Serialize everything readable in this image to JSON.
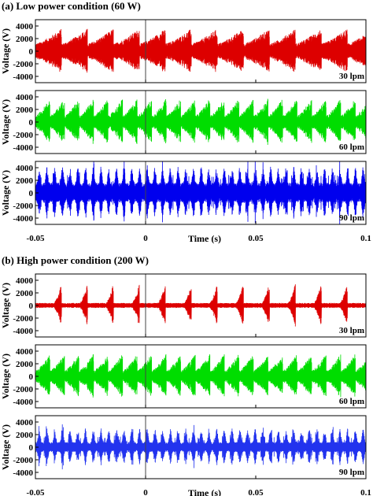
{
  "chart_data": [
    {
      "type": "line",
      "panel": "(a)",
      "title": "Low power condition (60 W)",
      "xlabel": "Time (s)",
      "xlim": [
        -0.05,
        0.1
      ],
      "x_ticks": [
        "-0.05",
        "0",
        "0.05",
        "0.1"
      ],
      "subplots": [
        {
          "ylabel": "Voltage (V)",
          "ylim": [
            -5000,
            5000
          ],
          "y_ticks": [
            "4000",
            "2000",
            "0",
            "-2000",
            "-4000"
          ],
          "annotation": "30 lpm",
          "color": "#dd0000",
          "pattern": {
            "envelope_peak_V": 3600,
            "baseline_V": 1200,
            "pulse_period_s": 0.0118,
            "pulse_shape": "sawtooth-rising"
          }
        },
        {
          "ylabel": "Voltage (V)",
          "ylim": [
            -5000,
            5000
          ],
          "y_ticks": [
            "4000",
            "2000",
            "0",
            "-2000",
            "-4000"
          ],
          "annotation": "60 lpm",
          "color": "#00dd00",
          "pattern": {
            "envelope_peak_V": 3800,
            "baseline_V": 1000,
            "pulse_period_s": 0.0066,
            "pulse_shape": "sawtooth-rising"
          }
        },
        {
          "ylabel": "Voltage (V)",
          "ylim": [
            -5000,
            5000
          ],
          "y_ticks": [
            "4000",
            "2000",
            "0",
            "-2000",
            "-4000"
          ],
          "annotation": "90 lpm",
          "color": "#0000ee",
          "pattern": {
            "envelope_peak_V": 4200,
            "baseline_V": 1600,
            "pulse_period_s": 0.0035,
            "pulse_shape": "spiky"
          }
        }
      ]
    },
    {
      "type": "line",
      "panel": "(b)",
      "title": "High power condition (200 W)",
      "xlabel": "Time (s)",
      "xlim": [
        -0.05,
        0.1
      ],
      "x_ticks": [
        "-0.05",
        "0",
        "0.05",
        "0.1"
      ],
      "subplots": [
        {
          "ylabel": "Voltage (V)",
          "ylim": [
            -5000,
            5000
          ],
          "y_ticks": [
            "4000",
            "2000",
            "0",
            "-2000",
            "-4000"
          ],
          "annotation": "30 lpm",
          "color": "#dd0000",
          "pattern": {
            "envelope_peak_V": 3600,
            "baseline_V": 400,
            "pulse_period_s": 0.0118,
            "pulse_shape": "burst"
          }
        },
        {
          "ylabel": "Voltage (V)",
          "ylim": [
            -5000,
            5000
          ],
          "y_ticks": [
            "4000",
            "2000",
            "0",
            "-2000",
            "-4000"
          ],
          "annotation": "60 lpm",
          "color": "#00dd00",
          "pattern": {
            "envelope_peak_V": 3600,
            "baseline_V": 900,
            "pulse_period_s": 0.0066,
            "pulse_shape": "sawtooth-rising"
          }
        },
        {
          "ylabel": "Voltage (V)",
          "ylim": [
            -5000,
            5000
          ],
          "y_ticks": [
            "4000",
            "2000",
            "0",
            "-2000",
            "-4000"
          ],
          "annotation": "90 lpm",
          "color": "#2233ee",
          "pattern": {
            "envelope_peak_V": 3000,
            "baseline_V": 800,
            "pulse_period_s": 0.0035,
            "pulse_shape": "spiky"
          }
        }
      ]
    }
  ]
}
